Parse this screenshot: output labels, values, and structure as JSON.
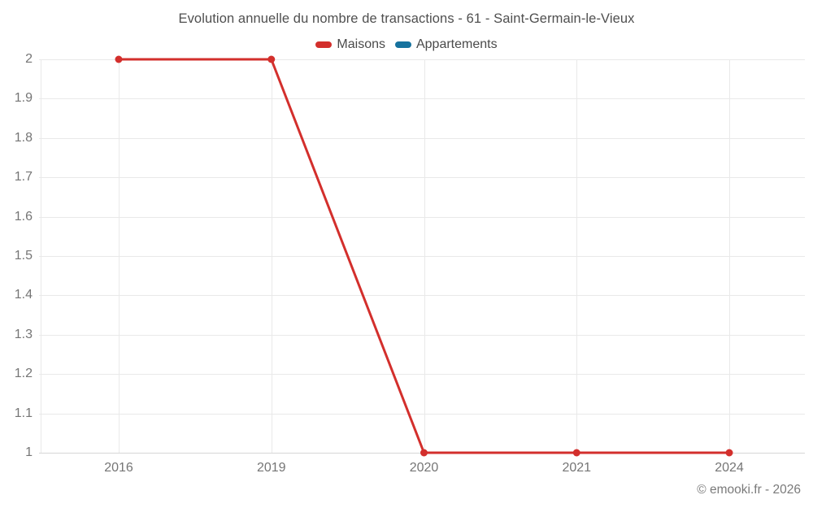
{
  "page": {
    "background": "#ffffff",
    "footer": "© emooki.fr - 2026"
  },
  "chart_data": {
    "type": "line",
    "title": "Evolution annuelle du nombre de transactions - 61 - Saint-Germain-le-Vieux",
    "xlabel": "",
    "ylabel": "",
    "categories": [
      "2016",
      "2019",
      "2020",
      "2021",
      "2024"
    ],
    "series": [
      {
        "name": "Maisons",
        "color": "#d32f2c",
        "values": [
          2,
          2,
          1,
          1,
          1
        ]
      },
      {
        "name": "Appartements",
        "color": "#16729e",
        "values": []
      }
    ],
    "yticks": [
      "2",
      "1.9",
      "1.8",
      "1.7",
      "1.6",
      "1.5",
      "1.4",
      "1.3",
      "1.2",
      "1.1",
      "1"
    ],
    "ylim": [
      1,
      2
    ],
    "grid": true,
    "legend_position": "top"
  },
  "colors": {
    "grid": "#e9e9e9",
    "axis_line": "#d6d6d6",
    "title_text": "#4f4f4f",
    "tick_text": "#757575",
    "legend_text": "#4a4a4a",
    "footer_text": "#7a7a7a"
  }
}
